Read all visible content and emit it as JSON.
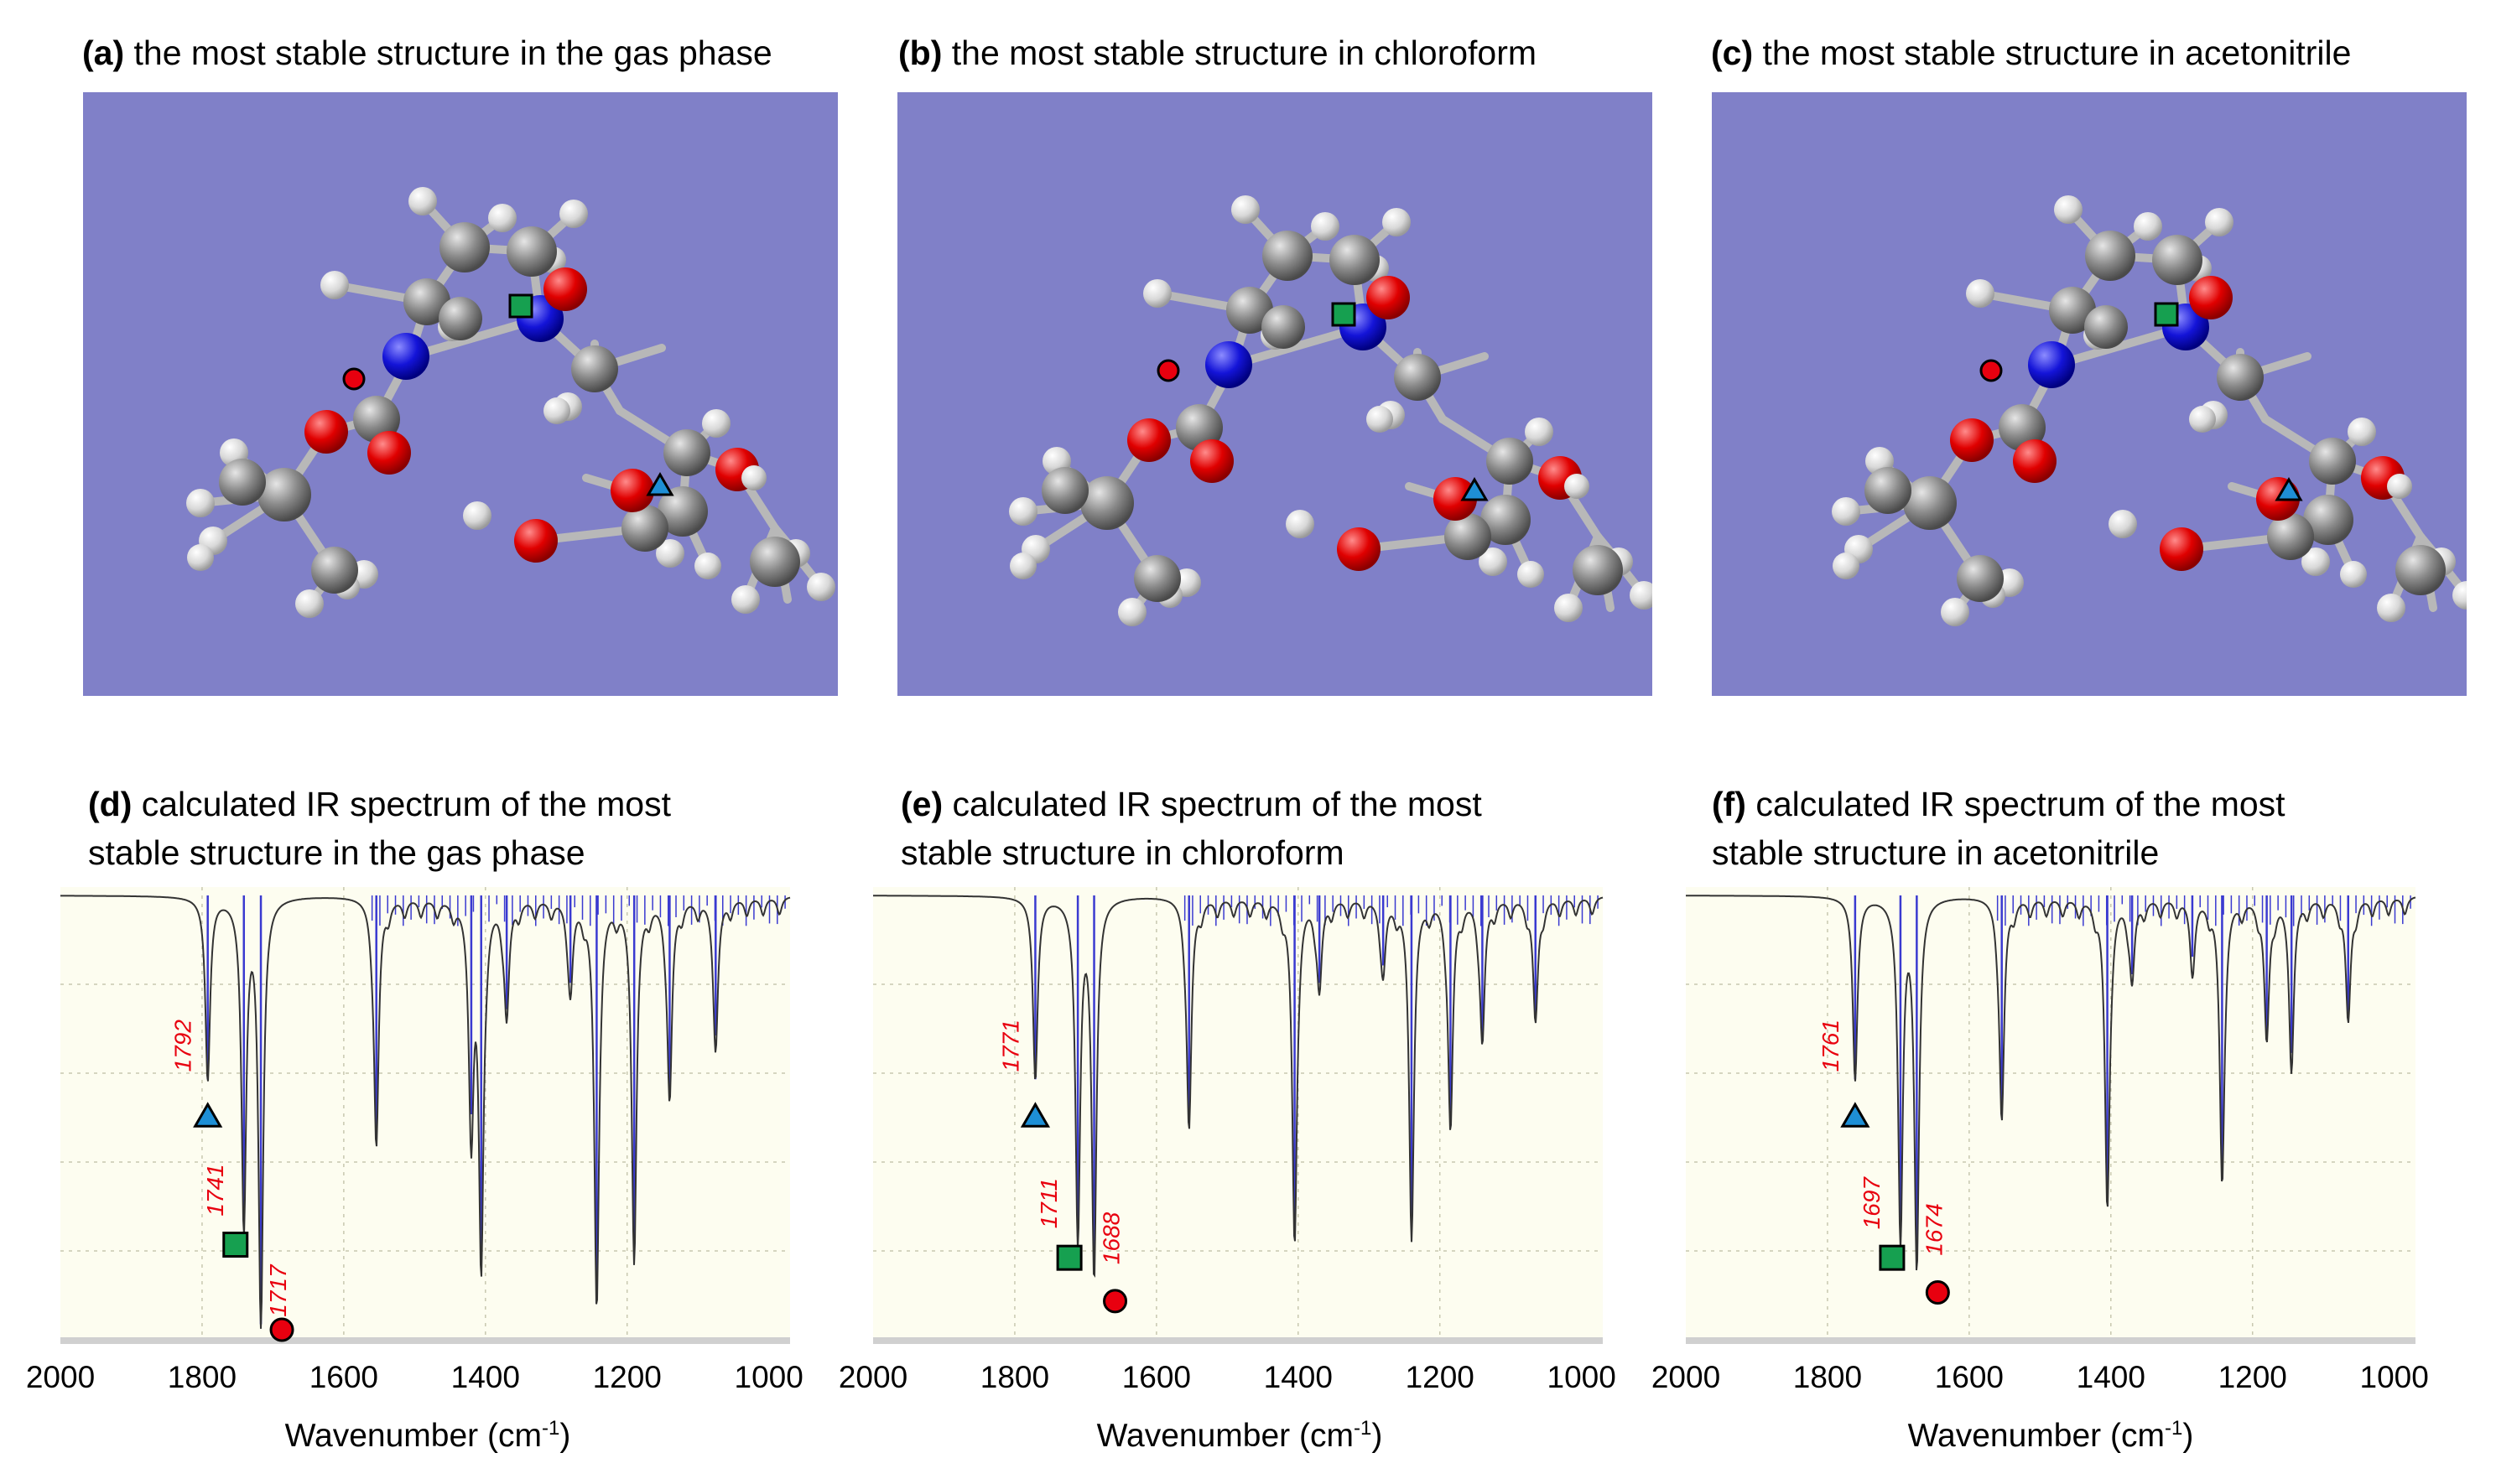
{
  "panels_top": [
    {
      "letter": "(a)",
      "caption": " the most stable structure in the gas phase"
    },
    {
      "letter": "(b)",
      "caption": " the most stable structure in chloroform"
    },
    {
      "letter": "(c)",
      "caption": " the most stable structure in acetonitrile"
    }
  ],
  "panels_bottom": [
    {
      "letter": "(d)",
      "caption_line1": " calculated IR spectrum of the most",
      "caption_line2": "stable structure in the gas phase"
    },
    {
      "letter": "(e)",
      "caption_line1": " calculated IR spectrum of the most",
      "caption_line2": "stable structure in chloroform"
    },
    {
      "letter": "(f)",
      "caption_line1": " calculated IR spectrum of the most",
      "caption_line2": "stable structure in acetonitrile"
    }
  ],
  "colors": {
    "mol_background": "#8080c8",
    "plot_background": "#fdfdf0",
    "spectrum_line": "#333333",
    "stick": "#3a3ad0",
    "label": "#e8000f",
    "triangle": "#1e8fd6",
    "square": "#16a050",
    "circle": "#e8000f"
  },
  "xtick_labels": [
    "2000",
    "1800",
    "1600",
    "1400",
    "1200",
    "1000"
  ],
  "xlabel_main": "Wavenumber (cm",
  "xlabel_sup": "-1",
  "xlabel_end": ")",
  "chart_data": [
    {
      "type": "line",
      "title": "(d) calculated IR spectrum of the most stable structure in the gas phase",
      "xlabel": "Wavenumber (cm-1)",
      "xlim": [
        2000,
        970
      ],
      "ylim": [
        0,
        1
      ],
      "peaks": [
        {
          "x": 1792,
          "depth": 0.42,
          "label": "1792",
          "marker": "triangle"
        },
        {
          "x": 1741,
          "depth": 0.75,
          "label": "1741",
          "marker": "square"
        },
        {
          "x": 1717,
          "depth": 0.98,
          "label": "1717",
          "marker": "circle"
        },
        {
          "x": 1554,
          "depth": 0.56
        },
        {
          "x": 1420,
          "depth": 0.5
        },
        {
          "x": 1406,
          "depth": 0.82
        },
        {
          "x": 1370,
          "depth": 0.26
        },
        {
          "x": 1280,
          "depth": 0.2
        },
        {
          "x": 1243,
          "depth": 0.92
        },
        {
          "x": 1190,
          "depth": 0.8
        },
        {
          "x": 1140,
          "depth": 0.45
        },
        {
          "x": 1075,
          "depth": 0.32
        }
      ]
    },
    {
      "type": "line",
      "title": "(e) calculated IR spectrum of the most stable structure in chloroform",
      "xlabel": "Wavenumber (cm-1)",
      "xlim": [
        2000,
        970
      ],
      "ylim": [
        0,
        1
      ],
      "peaks": [
        {
          "x": 1771,
          "depth": 0.42,
          "label": "1771",
          "marker": "triangle"
        },
        {
          "x": 1711,
          "depth": 0.78,
          "label": "1711",
          "marker": "square"
        },
        {
          "x": 1688,
          "depth": 0.86,
          "label": "1688",
          "marker": "circle"
        },
        {
          "x": 1554,
          "depth": 0.52
        },
        {
          "x": 1405,
          "depth": 0.78
        },
        {
          "x": 1370,
          "depth": 0.2
        },
        {
          "x": 1280,
          "depth": 0.16
        },
        {
          "x": 1240,
          "depth": 0.75
        },
        {
          "x": 1185,
          "depth": 0.52
        },
        {
          "x": 1140,
          "depth": 0.32
        },
        {
          "x": 1065,
          "depth": 0.28
        }
      ]
    },
    {
      "type": "line",
      "title": "(f) calculated IR spectrum of the most stable structure in acetonitrile",
      "xlabel": "Wavenumber (cm-1)",
      "xlim": [
        2000,
        970
      ],
      "ylim": [
        0,
        1
      ],
      "peaks": [
        {
          "x": 1761,
          "depth": 0.42,
          "label": "1761",
          "marker": "triangle"
        },
        {
          "x": 1697,
          "depth": 0.78,
          "label": "1697",
          "marker": "square"
        },
        {
          "x": 1674,
          "depth": 0.84,
          "label": "1674",
          "marker": "circle"
        },
        {
          "x": 1554,
          "depth": 0.5
        },
        {
          "x": 1405,
          "depth": 0.7
        },
        {
          "x": 1370,
          "depth": 0.18
        },
        {
          "x": 1285,
          "depth": 0.14
        },
        {
          "x": 1243,
          "depth": 0.64
        },
        {
          "x": 1180,
          "depth": 0.32
        },
        {
          "x": 1145,
          "depth": 0.36
        },
        {
          "x": 1065,
          "depth": 0.28
        }
      ]
    }
  ]
}
